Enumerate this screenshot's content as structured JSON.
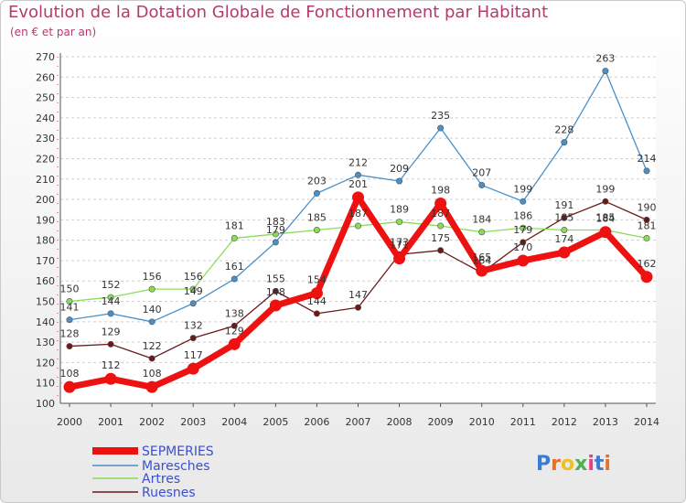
{
  "chart_data": {
    "type": "line",
    "title": "Evolution de la Dotation Globale de Fonctionnement par Habitant",
    "subtitle": "(en € et par an)",
    "x": [
      "2000",
      "2001",
      "2002",
      "2003",
      "2004",
      "2005",
      "2006",
      "2007",
      "2008",
      "2009",
      "2010",
      "2011",
      "2012",
      "2013",
      "2014"
    ],
    "ylim": [
      100,
      270
    ],
    "yticks": [
      100,
      110,
      120,
      130,
      140,
      150,
      160,
      170,
      180,
      190,
      200,
      210,
      220,
      230,
      240,
      250,
      260,
      270
    ],
    "grid": "horizontal-dashed",
    "legend_position": "bottom-left",
    "series": [
      {
        "name": "SEPMERIES",
        "color": "#ee1111",
        "values": [
          108,
          112,
          108,
          117,
          129,
          148,
          154,
          201,
          171,
          198,
          165,
          170,
          174,
          184,
          162
        ]
      },
      {
        "name": "Maresches",
        "color": "#4a90c8",
        "values": [
          141,
          144,
          140,
          149,
          161,
          179,
          203,
          212,
          209,
          235,
          207,
          199,
          228,
          263,
          214
        ]
      },
      {
        "name": "Artres",
        "color": "#88dd55",
        "values": [
          150,
          152,
          156,
          156,
          181,
          183,
          185,
          187,
          189,
          187,
          184,
          186,
          185,
          185,
          181
        ]
      },
      {
        "name": "Ruesnes",
        "color": "#6b1818",
        "values": [
          128,
          129,
          122,
          132,
          138,
          155,
          144,
          147,
          173,
          175,
          164,
          179,
          191,
          199,
          190
        ]
      }
    ]
  },
  "logo": {
    "text": "Proxiti",
    "letter_colors": [
      "#3a7bd5",
      "#e8712a",
      "#f0c020",
      "#4caf50",
      "#e83e8c",
      "#3a7bd5",
      "#e8712a"
    ]
  }
}
